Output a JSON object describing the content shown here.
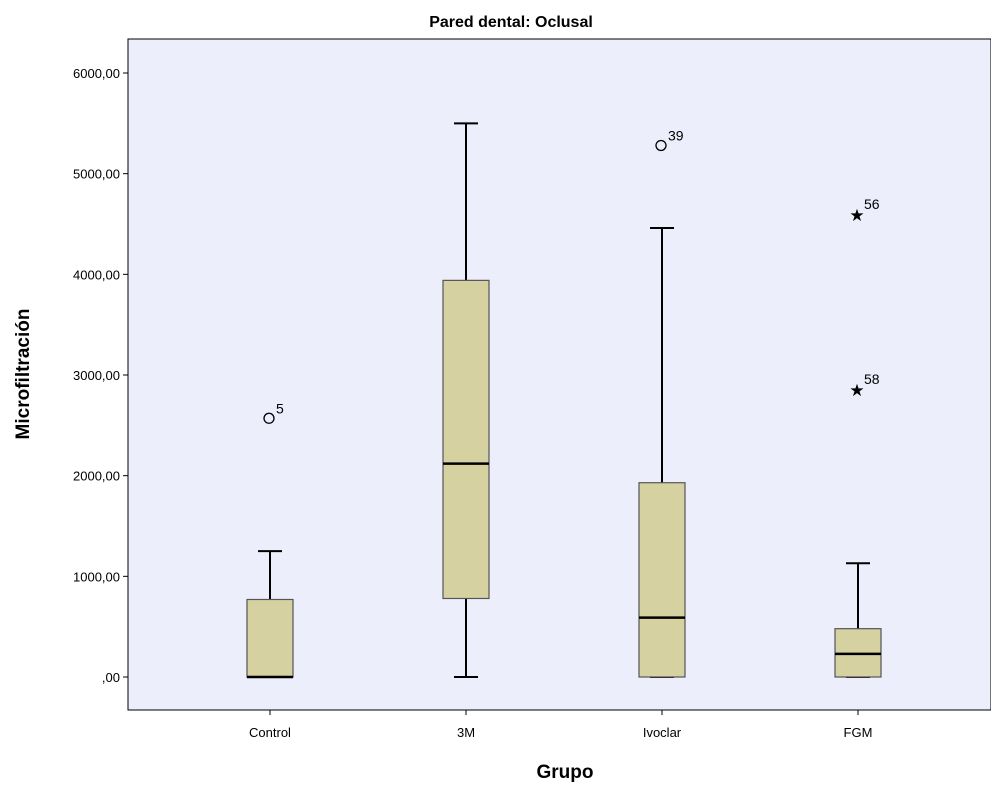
{
  "chart_data": {
    "type": "box",
    "title": "Pared dental: Oclusal",
    "xlabel": "Grupo",
    "ylabel": "Microfiltración",
    "ylim": [
      -330,
      6330
    ],
    "yticks": [
      0,
      1000,
      2000,
      3000,
      4000,
      5000,
      6000
    ],
    "ytick_labels": [
      ",00",
      "1000,00",
      "2000,00",
      "3000,00",
      "4000,00",
      "5000,00",
      "6000,00"
    ],
    "categories": [
      "Control",
      "3M",
      "Ivoclar",
      "FGM"
    ],
    "box_color": "#d6d1a1",
    "plot_background": "#eceefc",
    "grid": false,
    "boxes": [
      {
        "category": "Control",
        "whisker_low": 0,
        "q1": 0,
        "median": 0,
        "q3": 770,
        "whisker_high": 1250,
        "outliers": [
          {
            "value": 2570,
            "label": "5",
            "marker": "circle"
          }
        ]
      },
      {
        "category": "3M",
        "whisker_low": 0,
        "q1": 780,
        "median": 2120,
        "q3": 3940,
        "whisker_high": 5500,
        "outliers": []
      },
      {
        "category": "Ivoclar",
        "whisker_low": 0,
        "q1": 0,
        "median": 590,
        "q3": 1930,
        "whisker_high": 4460,
        "outliers": [
          {
            "value": 5280,
            "label": "39",
            "marker": "circle"
          }
        ]
      },
      {
        "category": "FGM",
        "whisker_low": 0,
        "q1": 0,
        "median": 230,
        "q3": 480,
        "whisker_high": 1130,
        "outliers": [
          {
            "value": 4600,
            "label": "56",
            "marker": "star"
          },
          {
            "value": 2860,
            "label": "58",
            "marker": "star"
          }
        ]
      }
    ]
  }
}
